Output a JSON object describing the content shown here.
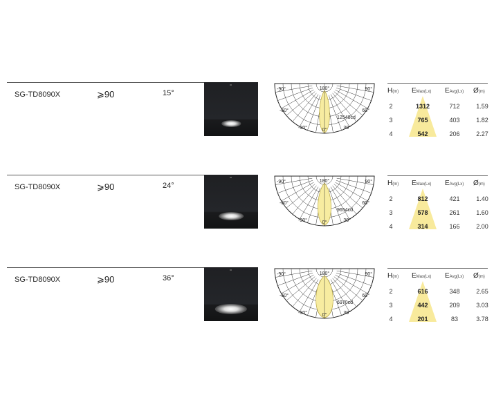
{
  "table_headers": {
    "h": "H",
    "h_unit": "(m)",
    "emax": "E",
    "emax_unit": "Max(Lx)",
    "eavg": "E",
    "eavg_unit": "Avg(Lx)",
    "dia": "Ø",
    "dia_unit": "(m)"
  },
  "polar_labels": {
    "top": "180°",
    "left90": "-90°",
    "right90": "90°",
    "left60": "-60°",
    "right60": "60°",
    "left30": "-30°",
    "right30": "30°",
    "zero": "0°"
  },
  "colors": {
    "beam_fill": "#f7eca0",
    "beam_stroke": "#b8a640",
    "triangle": "#f8ea9c"
  },
  "products": [
    {
      "model": "SG-TD8090X",
      "cri": "⩾90",
      "beam_angle": "15°",
      "beam_deg": 15,
      "peak_intensity": "12548cd",
      "rows": [
        [
          "2",
          "1312",
          "712",
          "1.59"
        ],
        [
          "3",
          "765",
          "403",
          "1.82"
        ],
        [
          "4",
          "542",
          "206",
          "2.27"
        ]
      ]
    },
    {
      "model": "SG-TD8090X",
      "cri": "⩾90",
      "beam_angle": "24°",
      "beam_deg": 24,
      "peak_intensity": "9654cd",
      "rows": [
        [
          "2",
          "812",
          "421",
          "1.40"
        ],
        [
          "3",
          "578",
          "261",
          "1.60"
        ],
        [
          "4",
          "314",
          "166",
          "2.00"
        ]
      ]
    },
    {
      "model": "SG-TD8090X",
      "cri": "⩾90",
      "beam_angle": "36°",
      "beam_deg": 36,
      "peak_intensity": "6970cd",
      "rows": [
        [
          "2",
          "616",
          "348",
          "2.65"
        ],
        [
          "3",
          "442",
          "209",
          "3.03"
        ],
        [
          "4",
          "201",
          "83",
          "3.78"
        ]
      ]
    }
  ]
}
